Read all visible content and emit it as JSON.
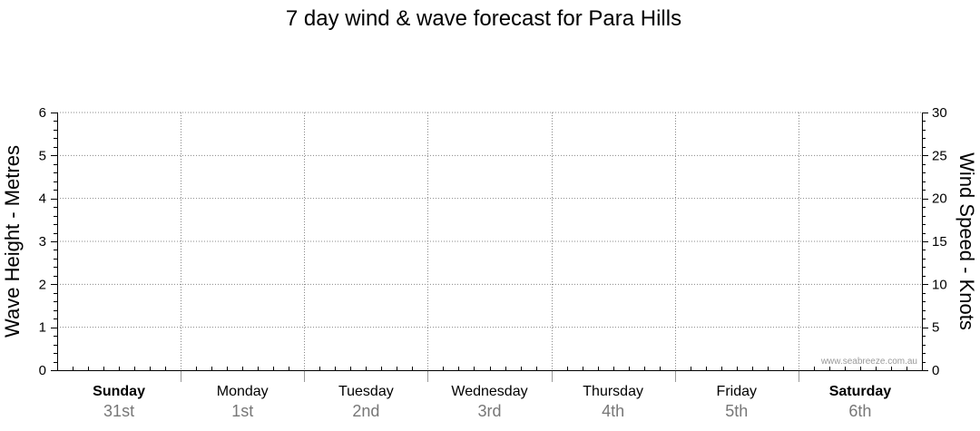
{
  "chart_data": {
    "type": "line",
    "title": "7 day wind & wave forecast for Para Hills",
    "ylabel_left": "Wave Height - Metres",
    "ylabel_right": "Wind Speed - Knots",
    "ylim_left": [
      0,
      6
    ],
    "ylim_right": [
      0,
      30
    ],
    "yticks_left": [
      "0",
      "1",
      "2",
      "3",
      "4",
      "5",
      "6"
    ],
    "yticks_right": [
      "0",
      "5",
      "10",
      "15",
      "20",
      "25",
      "30"
    ],
    "days": [
      {
        "name": "Sunday",
        "date": "31st",
        "bold": true
      },
      {
        "name": "Monday",
        "date": "1st",
        "bold": false
      },
      {
        "name": "Tuesday",
        "date": "2nd",
        "bold": false
      },
      {
        "name": "Wednesday",
        "date": "3rd",
        "bold": false
      },
      {
        "name": "Thursday",
        "date": "4th",
        "bold": false
      },
      {
        "name": "Friday",
        "date": "5th",
        "bold": false
      },
      {
        "name": "Saturday",
        "date": "6th",
        "bold": true
      }
    ],
    "series": [],
    "grid": true,
    "watermark": "www.seabreeze.com.au"
  }
}
